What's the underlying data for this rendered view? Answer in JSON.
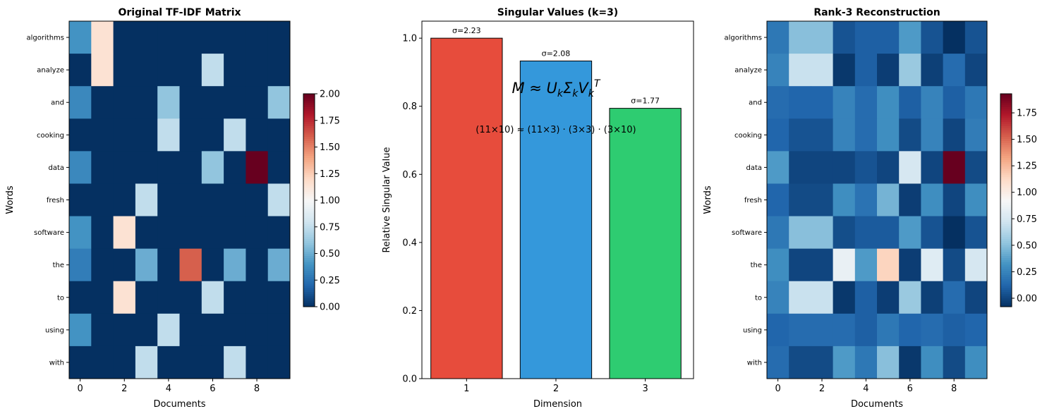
{
  "chart_data": [
    {
      "type": "heatmap",
      "title": "Original TF-IDF Matrix",
      "xlabel": "Documents",
      "ylabel": "Words",
      "colormap": "RdBu_r",
      "rows": [
        "algorithms",
        "analyze",
        "and",
        "cooking",
        "data",
        "fresh",
        "software",
        "the",
        "to",
        "using",
        "with"
      ],
      "columns": [
        0,
        1,
        2,
        3,
        4,
        5,
        6,
        7,
        8,
        9
      ],
      "xticks": [
        0,
        2,
        4,
        6,
        8
      ],
      "values": [
        [
          0.4,
          1.15,
          0,
          0,
          0,
          0,
          0,
          0,
          0,
          0
        ],
        [
          0,
          1.15,
          0,
          0,
          0,
          0,
          0.75,
          0,
          0,
          0
        ],
        [
          0.35,
          0,
          0,
          0,
          0.6,
          0,
          0,
          0,
          0,
          0.6
        ],
        [
          0,
          0,
          0,
          0,
          0.75,
          0,
          0,
          0.75,
          0,
          0
        ],
        [
          0.35,
          0,
          0,
          0,
          0,
          0,
          0.6,
          0,
          2.0,
          0
        ],
        [
          0,
          0,
          0,
          0.75,
          0,
          0,
          0,
          0,
          0,
          0.75
        ],
        [
          0.4,
          0,
          1.15,
          0,
          0,
          0,
          0,
          0,
          0,
          0
        ],
        [
          0.3,
          0,
          0,
          0.5,
          0,
          1.6,
          0,
          0.5,
          0,
          0.5
        ],
        [
          0,
          0,
          1.15,
          0,
          0,
          0,
          0.75,
          0,
          0,
          0
        ],
        [
          0.4,
          0,
          0,
          0,
          0.75,
          0,
          0,
          0,
          0,
          0
        ],
        [
          0,
          0,
          0,
          0.75,
          0,
          0,
          0,
          0.75,
          0,
          0
        ]
      ],
      "colorbar": {
        "range": [
          0,
          2.0
        ],
        "ticks": [
          "0.00",
          "0.25",
          "0.50",
          "0.75",
          "1.00",
          "1.25",
          "1.50",
          "1.75",
          "2.00"
        ]
      }
    },
    {
      "type": "bar",
      "title": "Singular Values (k=3)",
      "xlabel": "Dimension",
      "ylabel": "Relative Singular Value",
      "categories": [
        "1",
        "2",
        "3"
      ],
      "values": [
        1.0,
        0.933,
        0.794
      ],
      "data_labels": [
        "σ=2.23",
        "σ=2.08",
        "σ=1.77"
      ],
      "colors": [
        "#e74c3c",
        "#3498db",
        "#2ecc71"
      ],
      "ylim": [
        0,
        1.05
      ],
      "xlim": [
        0.5,
        3.54
      ],
      "yticks": [
        "0.0",
        "0.2",
        "0.4",
        "0.6",
        "0.8",
        "1.0"
      ],
      "annotations": [
        "M ≈ U_k Σ_k V_k^T",
        "(11×10) ≈ (11×3) · (3×3) · (3×10)"
      ]
    },
    {
      "type": "heatmap",
      "title": "Rank-3 Reconstruction",
      "xlabel": "Documents",
      "ylabel": "Words",
      "colormap": "RdBu_r",
      "rows": [
        "algorithms",
        "analyze",
        "and",
        "cooking",
        "data",
        "fresh",
        "software",
        "the",
        "to",
        "using",
        "with"
      ],
      "columns": [
        0,
        1,
        2,
        3,
        4,
        5,
        6,
        7,
        8,
        9
      ],
      "xticks": [
        0,
        2,
        4,
        6,
        8
      ],
      "values": [
        [
          0.2,
          0.5,
          0.5,
          0.05,
          0.1,
          0.1,
          0.35,
          0.05,
          -0.08,
          0.05
        ],
        [
          0.25,
          0.7,
          0.7,
          -0.05,
          0.1,
          -0.03,
          0.55,
          -0.02,
          0.15,
          0.0
        ],
        [
          0.15,
          0.12,
          0.12,
          0.25,
          0.15,
          0.3,
          0.1,
          0.25,
          0.1,
          0.2
        ],
        [
          0.12,
          0.05,
          0.05,
          0.25,
          0.15,
          0.3,
          0.02,
          0.25,
          0.0,
          0.22
        ],
        [
          0.35,
          0.0,
          0.0,
          0.0,
          0.05,
          0.0,
          0.75,
          0.0,
          1.93,
          0.02
        ],
        [
          0.12,
          0.02,
          0.02,
          0.3,
          0.18,
          0.45,
          -0.03,
          0.3,
          0.0,
          0.3
        ],
        [
          0.2,
          0.5,
          0.5,
          0.03,
          0.08,
          0.08,
          0.35,
          0.05,
          -0.08,
          0.05
        ],
        [
          0.3,
          0.0,
          0.0,
          0.85,
          0.35,
          1.15,
          -0.03,
          0.8,
          0.02,
          0.75
        ],
        [
          0.25,
          0.7,
          0.7,
          -0.05,
          0.1,
          -0.03,
          0.55,
          -0.02,
          0.15,
          0.0
        ],
        [
          0.12,
          0.15,
          0.15,
          0.15,
          0.1,
          0.2,
          0.12,
          0.15,
          0.1,
          0.12
        ],
        [
          0.15,
          0.02,
          0.02,
          0.35,
          0.2,
          0.5,
          -0.05,
          0.3,
          0.02,
          0.3
        ]
      ],
      "colorbar": {
        "range": [
          -0.08,
          1.93
        ],
        "ticks": [
          "0.00",
          "0.25",
          "0.50",
          "0.75",
          "1.00",
          "1.25",
          "1.50",
          "1.75"
        ]
      }
    }
  ]
}
